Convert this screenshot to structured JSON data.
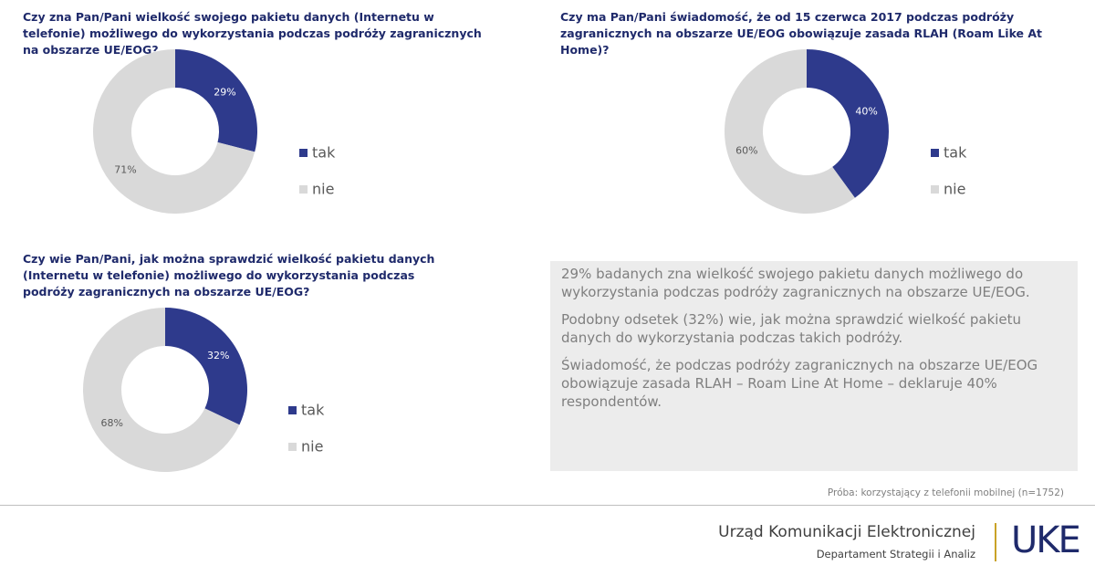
{
  "chart_data": [
    {
      "type": "donut",
      "title": "Czy zna Pan/Pani wielkość swojego pakietu danych (Internetu w telefonie) możliwego do wykorzystania podczas podróży zagranicznych na obszarze UE/EOG?",
      "categories": [
        "tak",
        "nie"
      ],
      "values": [
        29,
        71
      ],
      "value_labels": [
        "29%",
        "71%"
      ],
      "colors": [
        "#2e3a8c",
        "#d9d9d9"
      ]
    },
    {
      "type": "donut",
      "title": "Czy ma Pan/Pani świadomość, że od 15 czerwca 2017 podczas podróży zagranicznych na obszarze UE/EOG obowiązuje zasada RLAH (Roam Like At Home)?",
      "categories": [
        "tak",
        "nie"
      ],
      "values": [
        40,
        60
      ],
      "value_labels": [
        "40%",
        "60%"
      ],
      "colors": [
        "#2e3a8c",
        "#d9d9d9"
      ]
    },
    {
      "type": "donut",
      "title": "Czy wie Pan/Pani, jak można sprawdzić wielkość pakietu danych (Internetu w telefonie) możliwego do wykorzystania podczas podróży zagranicznych na obszarze UE/EOG?",
      "categories": [
        "tak",
        "nie"
      ],
      "values": [
        32,
        68
      ],
      "value_labels": [
        "32%",
        "68%"
      ],
      "colors": [
        "#2e3a8c",
        "#d9d9d9"
      ]
    }
  ],
  "notes": [
    "29% badanych zna wielkość swojego pakietu danych możliwego do wykorzystania podczas podróży zagranicznych na obszarze UE/EOG.",
    "Podobny odsetek (32%) wie, jak można sprawdzić wielkość pakietu danych do wykorzystania podczas takich podróży.",
    "Świadomość, że podczas podróży zagranicznych na obszarze UE/EOG obowiązuje zasada RLAH – Roam Line At Home – deklaruje 40% respondentów."
  ],
  "sample": "Próba: korzystający z telefonii mobilnej (n=1752)",
  "footer": {
    "org": "Urząd Komunikacji Elektronicznej",
    "dept": "Departament Strategii i Analiz",
    "logo": "UKE"
  }
}
